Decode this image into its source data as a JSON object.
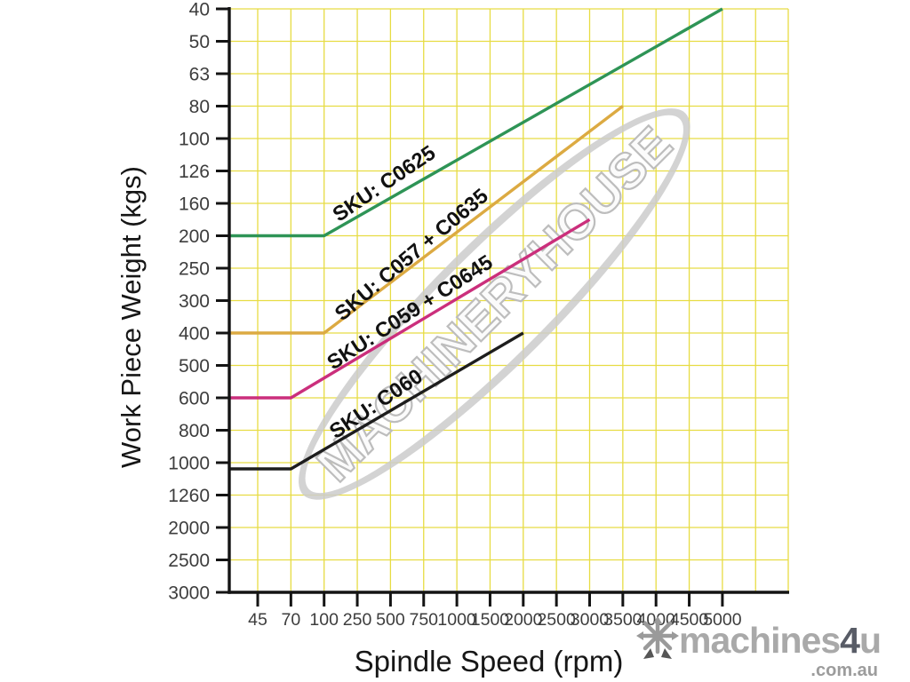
{
  "watermark": {
    "text": "MACHINERYHOUSE"
  },
  "logo": {
    "icon": "snowflake-icon",
    "brand_part1": "machines",
    "brand_accent": "4",
    "brand_part2": "u",
    "domain": ".com.au"
  },
  "chart_data": {
    "type": "line",
    "title": "",
    "xlabel": "Spindle Speed (rpm)",
    "ylabel": "Work Piece Weight (kgs)",
    "x_ticks": [
      45,
      70,
      100,
      250,
      500,
      750,
      1000,
      1500,
      2000,
      2500,
      3000,
      3500,
      4000,
      4500,
      5000
    ],
    "y_ticks": [
      40,
      50,
      63,
      80,
      100,
      126,
      160,
      200,
      250,
      300,
      400,
      500,
      600,
      800,
      1000,
      1260,
      2000,
      2500,
      3000
    ],
    "axis_notes": {
      "x": "positional/log-like category spacing, rpm",
      "y": "inverted axis: 40 kgs at top, 3000 kgs at bottom",
      "grid": "on, both axes, one line per tick"
    },
    "grid_color": "#e7dc43",
    "axis_color": "#141414",
    "tick_label_color": "#3d3d3d",
    "series": [
      {
        "label": "SKU: C0625",
        "color": "#2e9456",
        "points": [
          [
            "axis",
            200
          ],
          [
            100,
            200
          ],
          [
            5000,
            40
          ]
        ],
        "label_anchor": {
          "x": 433,
          "y": 208,
          "angle": -34
        }
      },
      {
        "label": "SKU: C057 + C0635",
        "color": "#dcaa42",
        "points": [
          [
            "axis",
            400
          ],
          [
            100,
            400
          ],
          [
            3500,
            80
          ]
        ],
        "label_anchor": {
          "x": 464,
          "y": 288,
          "angle": -40
        }
      },
      {
        "label": "SKU: C059 + C0645",
        "color": "#cb2f7c",
        "points": [
          [
            "axis",
            600
          ],
          [
            70,
            600
          ],
          [
            3000,
            180
          ]
        ],
        "label_anchor": {
          "x": 462,
          "y": 353,
          "angle": -33
        }
      },
      {
        "label": "SKU: C060",
        "color": "#1d1d1d",
        "points": [
          [
            "axis",
            1050
          ],
          [
            70,
            1050
          ],
          [
            2000,
            400
          ]
        ],
        "label_anchor": {
          "x": 424,
          "y": 456,
          "angle": -34
        }
      }
    ]
  }
}
